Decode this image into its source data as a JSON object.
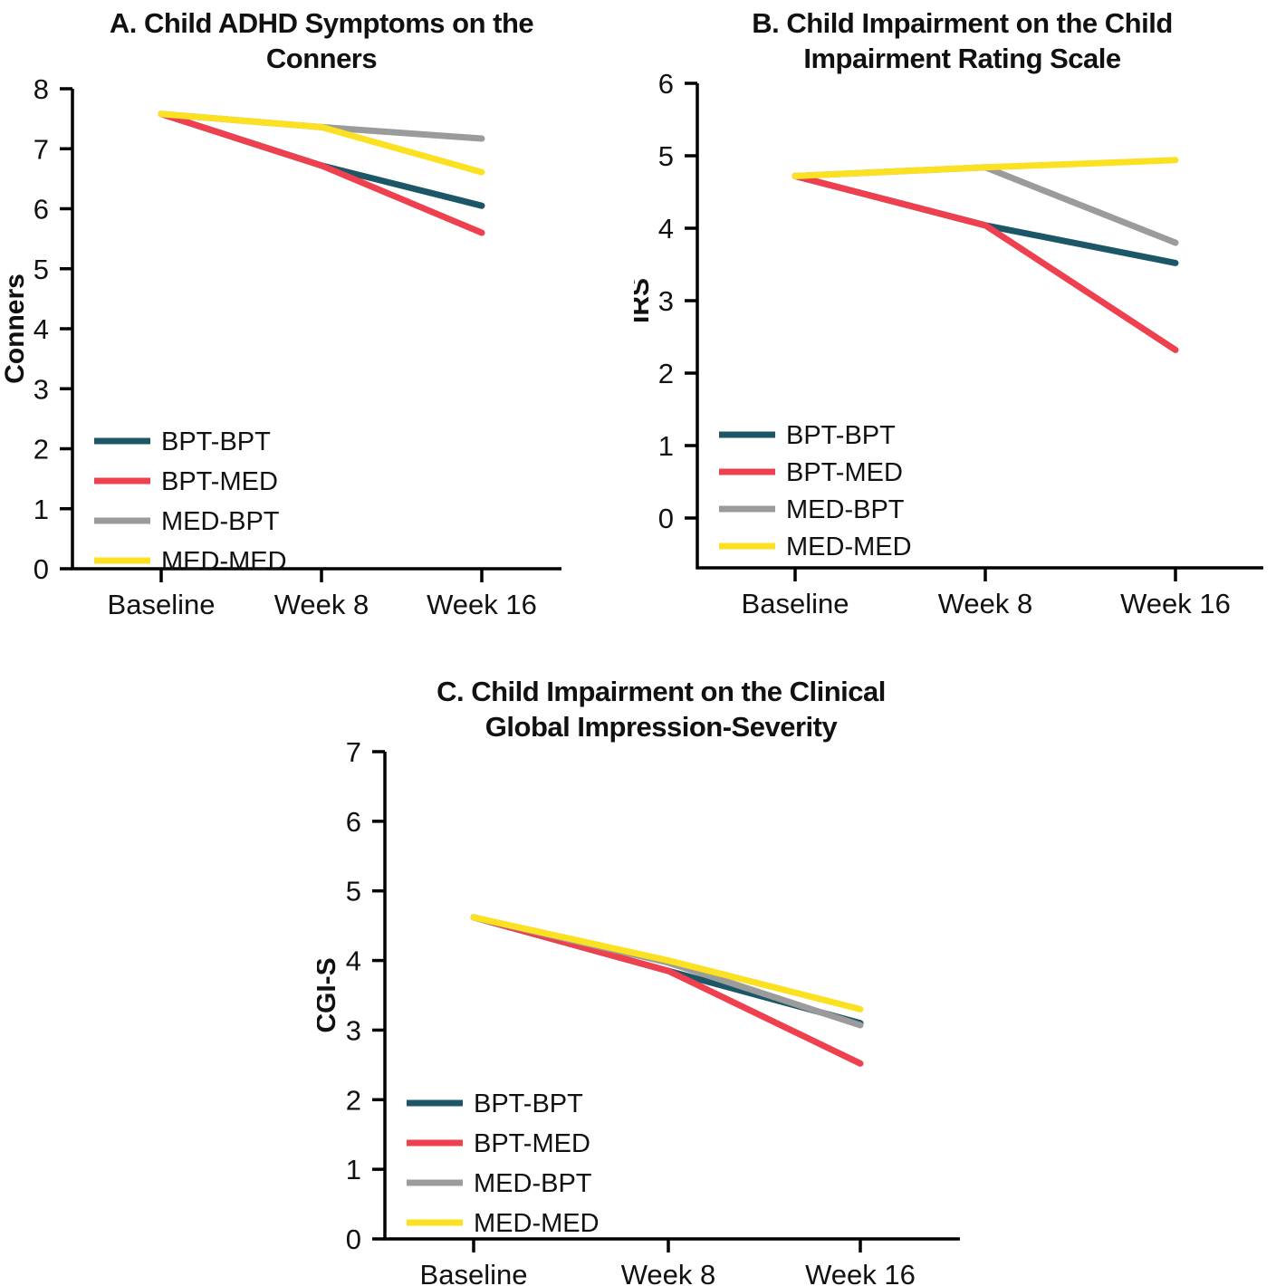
{
  "figure": {
    "background": "#FFFFFF",
    "text_color": "#111111",
    "axis_color": "#000000"
  },
  "chart_data": [
    {
      "id": "panel-a",
      "type": "line",
      "title": "A. Child ADHD Symptoms on the Conners",
      "title_lines": [
        "A. Child ADHD Symptoms on the",
        "Conners"
      ],
      "ylabel": "Conners",
      "categories": [
        "Baseline",
        "Week 8",
        "Week 16"
      ],
      "yticks": [
        0,
        1,
        2,
        3,
        4,
        5,
        6,
        7,
        8
      ],
      "ylim": [
        0,
        8
      ],
      "grid": false,
      "legend_position": "lower-left",
      "series": [
        {
          "name": "BPT-BPT",
          "color": "#1C5768",
          "values": [
            7.58,
            6.72,
            6.05
          ]
        },
        {
          "name": "BPT-MED",
          "color": "#EE404F",
          "values": [
            7.58,
            6.72,
            5.6
          ]
        },
        {
          "name": "MED-BPT",
          "color": "#9B9B9B",
          "values": [
            7.58,
            7.36,
            7.17
          ]
        },
        {
          "name": "MED-MED",
          "color": "#FBE122",
          "values": [
            7.58,
            7.36,
            6.61
          ]
        }
      ]
    },
    {
      "id": "panel-b",
      "type": "line",
      "title": "B. Child Impairment on the Child Impairment Rating Scale",
      "title_lines": [
        "B. Child Impairment on the Child",
        "Impairment Rating Scale"
      ],
      "ylabel": "IRS",
      "categories": [
        "Baseline",
        "Week 8",
        "Week 16"
      ],
      "yticks": [
        0,
        1,
        2,
        3,
        4,
        5,
        6
      ],
      "ylim": [
        0,
        6
      ],
      "grid": false,
      "legend_position": "lower-left",
      "series": [
        {
          "name": "BPT-BPT",
          "color": "#1C5768",
          "values": [
            4.72,
            4.04,
            3.52
          ]
        },
        {
          "name": "BPT-MED",
          "color": "#EE404F",
          "values": [
            4.72,
            4.04,
            2.32
          ]
        },
        {
          "name": "MED-BPT",
          "color": "#9B9B9B",
          "values": [
            4.72,
            4.84,
            3.8
          ]
        },
        {
          "name": "MED-MED",
          "color": "#FBE122",
          "values": [
            4.72,
            4.84,
            4.94
          ]
        }
      ]
    },
    {
      "id": "panel-c",
      "type": "line",
      "title": "C. Child Impairment on the Clinical Global Impression-Severity",
      "title_lines": [
        "C. Child Impairment on the Clinical",
        "Global Impression-Severity"
      ],
      "ylabel": "CGI-S",
      "categories": [
        "Baseline",
        "Week 8",
        "Week 16"
      ],
      "yticks": [
        0,
        1,
        2,
        3,
        4,
        5,
        6,
        7
      ],
      "ylim": [
        0,
        7
      ],
      "grid": false,
      "legend_position": "lower-left",
      "series": [
        {
          "name": "BPT-BPT",
          "color": "#1C5768",
          "values": [
            4.62,
            3.85,
            3.1
          ]
        },
        {
          "name": "BPT-MED",
          "color": "#EE404F",
          "values": [
            4.62,
            3.85,
            2.52
          ]
        },
        {
          "name": "MED-BPT",
          "color": "#9B9B9B",
          "values": [
            4.62,
            3.97,
            3.07
          ]
        },
        {
          "name": "MED-MED",
          "color": "#FBE122",
          "values": [
            4.62,
            4.0,
            3.3
          ]
        }
      ]
    }
  ]
}
